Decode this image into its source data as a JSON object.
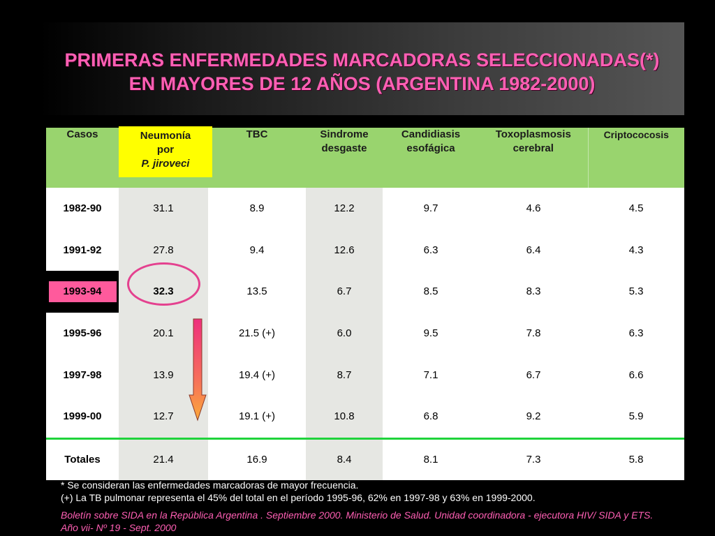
{
  "title": {
    "line1": "PRIMERAS ENFERMEDADES MARCADORAS SELECCIONADAS(*)",
    "line2": "EN MAYORES DE 12 AÑOS (ARGENTINA 1982-2000)"
  },
  "colors": {
    "title_text": "#ff5fb4",
    "header_bg": "#99d46e",
    "highlight_yellow": "#ffff00",
    "highlight_pink": "#ff5a9c",
    "circle": "#e4418f",
    "total_rule": "#1fd33b"
  },
  "table": {
    "headers": {
      "casos": "Casos",
      "neumonia_1": "Neumonía",
      "neumonia_2": "por",
      "neumonia_3": "P. jiroveci",
      "tbc": "TBC",
      "sindrome_1": "Sindrome",
      "sindrome_2": "desgaste",
      "candidiasis_1": "Candidiasis",
      "candidiasis_2": "esofágica",
      "toxo_1": "Toxoplasmosis",
      "toxo_2": "cerebral",
      "cripto": "Criptococosis"
    },
    "rows": [
      {
        "period": "1982-90",
        "neumonia": "31.1",
        "tbc": "8.9",
        "sindrome": "12.2",
        "candidiasis": "9.7",
        "toxo": "4.6",
        "cripto": "4.5"
      },
      {
        "period": "1991-92",
        "neumonia": "27.8",
        "tbc": "9.4",
        "sindrome": "12.6",
        "candidiasis": "6.3",
        "toxo": "6.4",
        "cripto": "4.3"
      },
      {
        "period": "1993-94",
        "neumonia": "32.3",
        "tbc": "13.5",
        "sindrome": "6.7",
        "candidiasis": "8.5",
        "toxo": "8.3",
        "cripto": "5.3"
      },
      {
        "period": "1995-96",
        "neumonia": "20.1",
        "tbc": "21.5 (+)",
        "sindrome": "6.0",
        "candidiasis": "9.5",
        "toxo": "7.8",
        "cripto": "6.3"
      },
      {
        "period": "1997-98",
        "neumonia": "13.9",
        "tbc": "19.4 (+)",
        "sindrome": "8.7",
        "candidiasis": "7.1",
        "toxo": "6.7",
        "cripto": "6.6"
      },
      {
        "period": "1999-00",
        "neumonia": "12.7",
        "tbc": "19.1 (+)",
        "sindrome": "10.8",
        "candidiasis": "6.8",
        "toxo": "9.2",
        "cripto": "5.9"
      }
    ],
    "totals": {
      "period": "Totales",
      "neumonia": "21.4",
      "tbc": "16.9",
      "sindrome": "8.4",
      "candidiasis": "8.1",
      "toxo": "7.3",
      "cripto": "5.8"
    }
  },
  "notes": {
    "asterisk": "* Se consideran las enfermedades marcadoras de mayor frecuencia.",
    "plus": "(+) La TB pulmonar representa el 45% del total en el período 1995-96, 62% en 1997-98 y 63% en 1999-2000."
  },
  "source": {
    "line1": "Boletín sobre SIDA en la República Argentina . Septiembre 2000. Ministerio de Salud. Unidad coordinadora - ejecutora HIV/ SIDA y ETS.",
    "line2": "Año vii- Nº 19 - Sept. 2000"
  }
}
